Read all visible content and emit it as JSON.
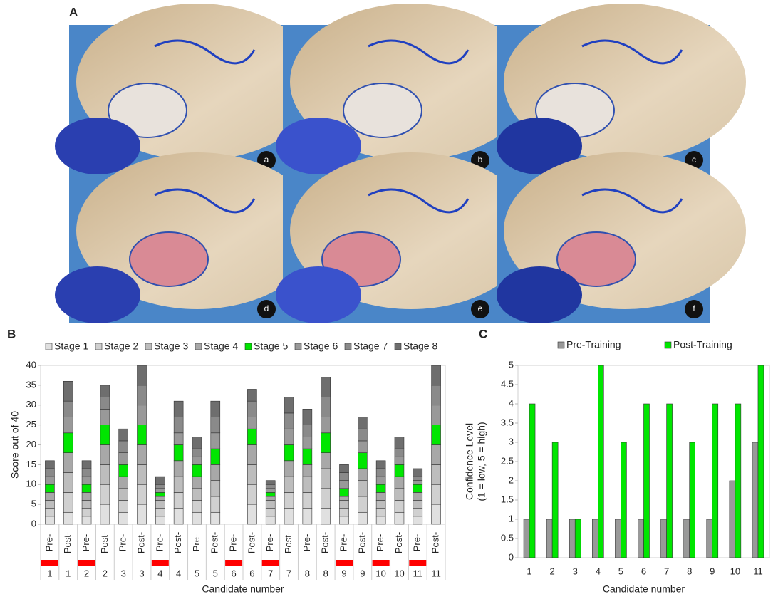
{
  "figure": {
    "panel_labels": [
      "A",
      "B",
      "C"
    ],
    "photo_labels": [
      "a",
      "b",
      "c",
      "d",
      "e",
      "f"
    ]
  },
  "chart_data": [
    {
      "type": "stacked_bar",
      "ylabel": "Score out of 40",
      "xlabel": "Candidate number",
      "categories": [
        "Pre-",
        "Post-",
        "Pre-",
        "Post-",
        "Pre-",
        "Post-",
        "Pre-",
        "Post-",
        "Pre-",
        "Post-",
        "Pre-",
        "Post-",
        "Pre-",
        "Post-",
        "Pre-",
        "Post-",
        "Pre-",
        "Post-",
        "Pre-",
        "Post-",
        "Pre-",
        "Post-"
      ],
      "groups": [
        "1",
        "1",
        "2",
        "2",
        "3",
        "3",
        "4",
        "4",
        "5",
        "5",
        "6",
        "6",
        "7",
        "7",
        "8",
        "8",
        "9",
        "9",
        "10",
        "10",
        "11",
        "11"
      ],
      "highlighted": [
        true,
        false,
        true,
        false,
        false,
        false,
        true,
        false,
        false,
        false,
        true,
        false,
        true,
        false,
        false,
        false,
        true,
        false,
        true,
        false,
        true,
        false
      ],
      "highlight_color": "#ff0000",
      "ylim": [
        0,
        40
      ],
      "yticks": [
        0,
        5,
        10,
        15,
        20,
        25,
        30,
        35,
        40
      ],
      "series": [
        {
          "name": "Stage 1",
          "color": "#e0e0e0",
          "values": [
            2,
            3,
            2,
            5,
            3,
            5,
            2,
            4,
            3,
            3,
            0,
            5,
            2,
            4,
            4,
            4,
            2,
            3,
            2,
            3,
            2,
            5
          ]
        },
        {
          "name": "Stage 2",
          "color": "#d0d0d0",
          "values": [
            2,
            5,
            2,
            5,
            3,
            5,
            2,
            4,
            3,
            4,
            0,
            5,
            2,
            4,
            4,
            5,
            2,
            4,
            2,
            3,
            2,
            5
          ]
        },
        {
          "name": "Stage 3",
          "color": "#bdbdbd",
          "values": [
            2,
            5,
            2,
            5,
            3,
            5,
            2,
            4,
            3,
            4,
            0,
            5,
            2,
            4,
            4,
            5,
            2,
            4,
            2,
            3,
            2,
            5
          ]
        },
        {
          "name": "Stage 4",
          "color": "#a8a8a8",
          "values": [
            2,
            5,
            2,
            5,
            3,
            5,
            1,
            4,
            3,
            4,
            0,
            5,
            1,
            4,
            3,
            4,
            1,
            3,
            2,
            3,
            2,
            5
          ]
        },
        {
          "name": "Stage 5",
          "color": "#00e600",
          "values": [
            2,
            5,
            2,
            5,
            3,
            5,
            1,
            4,
            3,
            4,
            0,
            4,
            1,
            4,
            4,
            5,
            2,
            4,
            2,
            3,
            2,
            5
          ]
        },
        {
          "name": "Stage 6",
          "color": "#999999",
          "values": [
            2,
            4,
            2,
            4,
            3,
            5,
            1,
            3,
            2,
            4,
            0,
            3,
            1,
            4,
            3,
            4,
            2,
            3,
            2,
            2,
            1,
            5
          ]
        },
        {
          "name": "Stage 7",
          "color": "#8a8a8a",
          "values": [
            2,
            4,
            2,
            3,
            3,
            5,
            1,
            4,
            2,
            4,
            0,
            4,
            1,
            4,
            3,
            5,
            2,
            3,
            2,
            2,
            1,
            5
          ]
        },
        {
          "name": "Stage 8",
          "color": "#6e6e6e",
          "values": [
            2,
            5,
            2,
            3,
            3,
            5,
            2,
            4,
            3,
            4,
            0,
            3,
            1,
            4,
            4,
            5,
            2,
            3,
            2,
            3,
            2,
            5
          ]
        }
      ]
    },
    {
      "type": "bar",
      "ylabel": [
        "Confidence Level",
        "(1 = low, 5 = high)"
      ],
      "xlabel": "Candidate number",
      "categories": [
        "1",
        "2",
        "3",
        "4",
        "5",
        "6",
        "7",
        "8",
        "9",
        "10",
        "11"
      ],
      "ylim": [
        0,
        5
      ],
      "yticks": [
        0,
        0.5,
        1,
        1.5,
        2,
        2.5,
        3,
        3.5,
        4,
        4.5,
        5
      ],
      "series": [
        {
          "name": "Pre-Training",
          "color": "#999999",
          "values": [
            1,
            1,
            1,
            1,
            1,
            1,
            1,
            1,
            1,
            2,
            3
          ]
        },
        {
          "name": "Post-Training",
          "color": "#00e600",
          "values": [
            4,
            3,
            1,
            5,
            3,
            4,
            4,
            3,
            4,
            4,
            5
          ]
        }
      ]
    }
  ]
}
